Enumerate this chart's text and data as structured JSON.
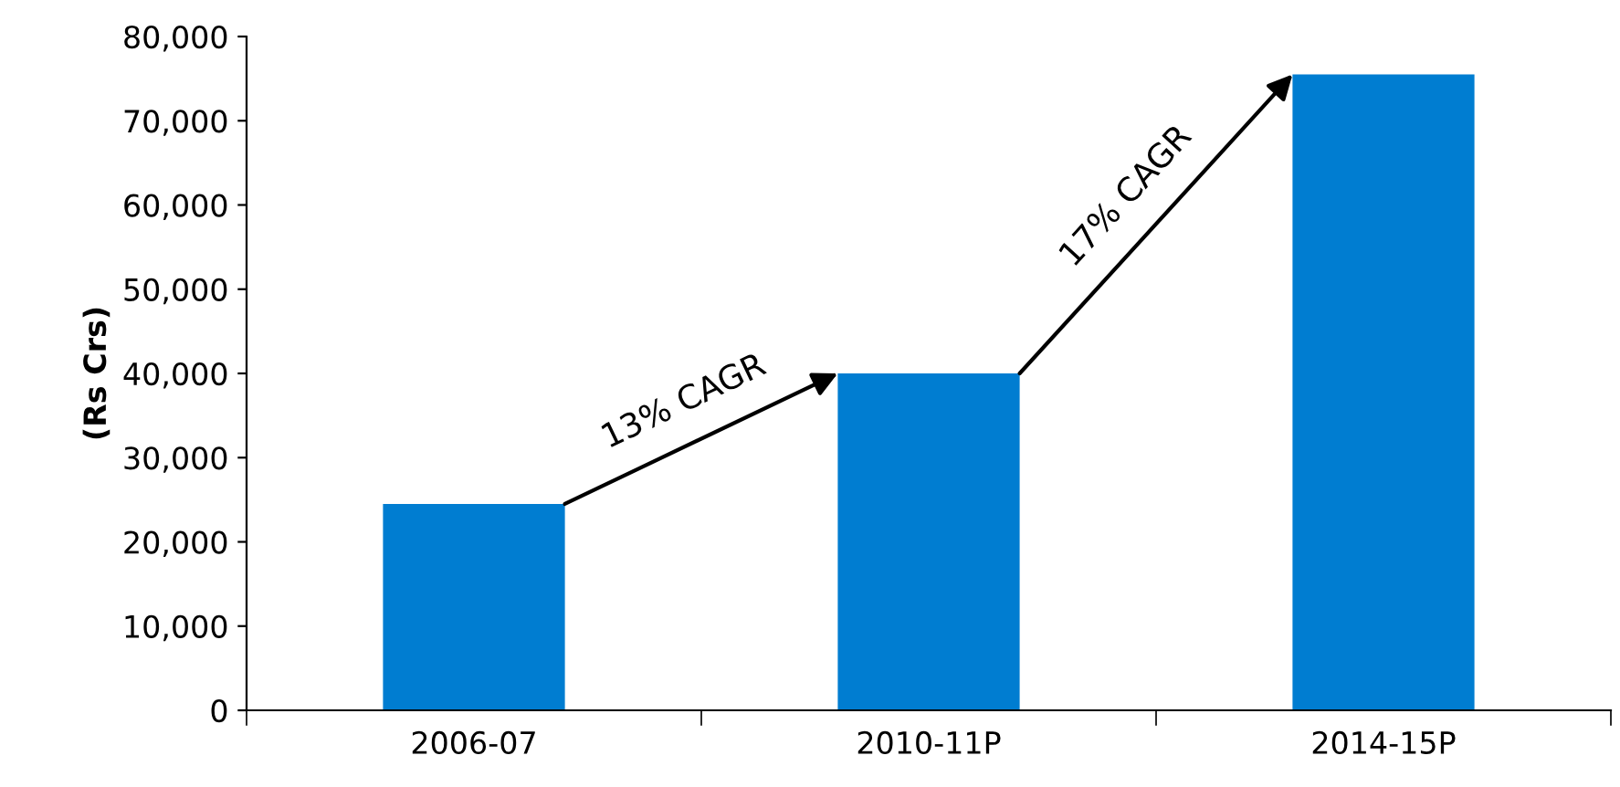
{
  "chart_data": {
    "type": "bar",
    "ylabel": "(Rs Crs)",
    "categories": [
      "2006-07",
      "2010-11P",
      "2014-15P"
    ],
    "values": [
      24500,
      40000,
      75500
    ],
    "color": "#007dd1",
    "ylim": [
      0,
      80000
    ],
    "yticks": [
      {
        "value": 0,
        "label": "0"
      },
      {
        "value": 10000,
        "label": "10,000"
      },
      {
        "value": 20000,
        "label": "20,000"
      },
      {
        "value": 30000,
        "label": "30,000"
      },
      {
        "value": 40000,
        "label": "40,000"
      },
      {
        "value": 50000,
        "label": "50,000"
      },
      {
        "value": 60000,
        "label": "60,000"
      },
      {
        "value": 70000,
        "label": "70,000"
      },
      {
        "value": 80000,
        "label": "80,000"
      }
    ],
    "grid": false,
    "legend": false,
    "annotations": [
      "13% CAGR",
      "17% CAGR"
    ]
  }
}
